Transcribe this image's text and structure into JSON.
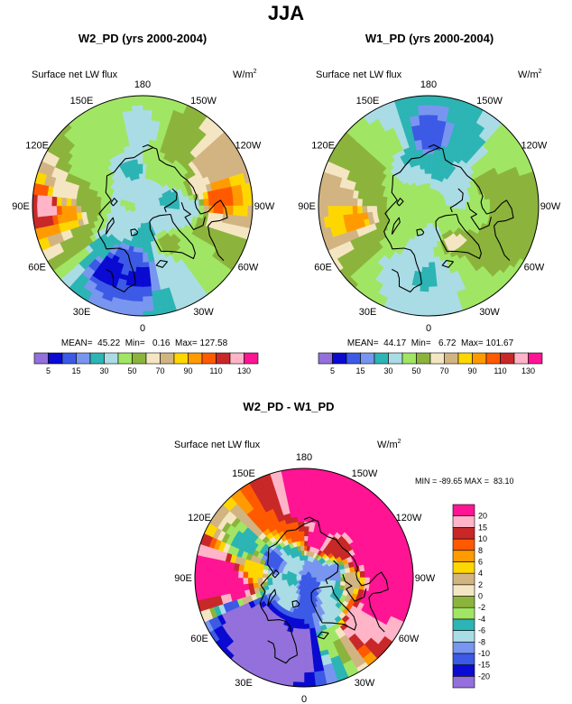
{
  "figure_title": "JJA",
  "palette_top": [
    "#9370db",
    "#0a0ad2",
    "#3c5ae6",
    "#7896f0",
    "#2db4b4",
    "#aadce6",
    "#a0e664",
    "#8cb43c",
    "#f5e6c3",
    "#d2b482",
    "#ffd700",
    "#ff9b00",
    "#ff5a00",
    "#c82828",
    "#ffb4c8",
    "#ff1493"
  ],
  "palette_diff": [
    "#9370db",
    "#0a0ad2",
    "#3c5ae6",
    "#7896f0",
    "#aadce6",
    "#2db4b4",
    "#a0e664",
    "#8cb43c",
    "#f5e6c3",
    "#d2b482",
    "#ffd700",
    "#ff9b00",
    "#ff5a00",
    "#c82828",
    "#ffb4c8",
    "#ff1493"
  ],
  "coastline_color": "#000000",
  "chart_data": [
    {
      "type": "heatmap",
      "projection": "polar-stereographic",
      "title": "W2_PD (yrs 2000-2004)",
      "variable": "Surface net LW flux",
      "units": "W/m",
      "units_exp": "2",
      "lon_labels": [
        "180",
        "150E",
        "120E",
        "90E",
        "60E",
        "30E",
        "0",
        "30W",
        "60W",
        "90W",
        "120W",
        "150W"
      ],
      "stats": {
        "mean": "45.22",
        "min": "0.16",
        "max": "127.58"
      },
      "stats_text": "MEAN=  45.22  Min=   0.16  Max= 127.58",
      "colorbar": {
        "levels": [
          5,
          10,
          15,
          20,
          30,
          40,
          50,
          60,
          70,
          80,
          90,
          100,
          110,
          120,
          130
        ],
        "tick_labels": [
          "5",
          "15",
          "30",
          "50",
          "70",
          "90",
          "110",
          "130"
        ]
      },
      "regions": [
        {
          "lon": 90,
          "lat": 52,
          "value": 125
        },
        {
          "lon": 85,
          "lat": 60,
          "value": 95
        },
        {
          "lon": 95,
          "lat": 67,
          "value": 55
        },
        {
          "lon": 100,
          "lat": 57,
          "value": 65
        },
        {
          "lon": 120,
          "lat": 62,
          "value": 48
        },
        {
          "lon": 150,
          "lat": 60,
          "value": 45
        },
        {
          "lon": 180,
          "lat": 60,
          "value": 38
        },
        {
          "lon": 165,
          "lat": 75,
          "value": 28
        },
        {
          "lon": 140,
          "lat": 78,
          "value": 32
        },
        {
          "lon": 120,
          "lat": 72,
          "value": 45
        },
        {
          "lon": 60,
          "lat": 62,
          "value": 55
        },
        {
          "lon": 45,
          "lat": 65,
          "value": 25
        },
        {
          "lon": 30,
          "lat": 62,
          "value": 5
        },
        {
          "lon": 15,
          "lat": 68,
          "value": 12
        },
        {
          "lon": 0,
          "lat": 62,
          "value": 8
        },
        {
          "lon": 0,
          "lat": 78,
          "value": 22
        },
        {
          "lon": 30,
          "lat": 80,
          "value": 38
        },
        {
          "lon": 60,
          "lat": 82,
          "value": 36
        },
        {
          "lon": 90,
          "lat": 85,
          "value": 42
        },
        {
          "lon": 135,
          "lat": 86,
          "value": 35
        },
        {
          "lon": -20,
          "lat": 62,
          "value": 35
        },
        {
          "lon": -35,
          "lat": 72,
          "value": 52
        },
        {
          "lon": -50,
          "lat": 62,
          "value": 48
        },
        {
          "lon": -60,
          "lat": 78,
          "value": 35
        },
        {
          "lon": -75,
          "lat": 62,
          "value": 60
        },
        {
          "lon": -85,
          "lat": 70,
          "value": 35
        },
        {
          "lon": -95,
          "lat": 60,
          "value": 110
        },
        {
          "lon": -100,
          "lat": 78,
          "value": 28
        },
        {
          "lon": -110,
          "lat": 66,
          "value": 62
        },
        {
          "lon": -120,
          "lat": 58,
          "value": 78
        },
        {
          "lon": -130,
          "lat": 72,
          "value": 48
        },
        {
          "lon": -150,
          "lat": 62,
          "value": 55
        },
        {
          "lon": -160,
          "lat": 74,
          "value": 48
        },
        {
          "lon": -140,
          "lat": 85,
          "value": 30
        },
        {
          "lon": -20,
          "lat": 86,
          "value": 30
        },
        {
          "lon": 0,
          "lat": 90,
          "value": 32
        }
      ]
    },
    {
      "type": "heatmap",
      "projection": "polar-stereographic",
      "title": "W1_PD (yrs 2000-2004)",
      "variable": "Surface net LW flux",
      "units": "W/m",
      "units_exp": "2",
      "lon_labels": [
        "180",
        "150E",
        "120E",
        "90E",
        "60E",
        "30E",
        "0",
        "30W",
        "60W",
        "90W",
        "120W",
        "150W"
      ],
      "stats": {
        "mean": "44.17",
        "min": "6.72",
        "max": "101.67"
      },
      "stats_text": "MEAN=  44.17  Min=   6.72  Max= 101.67",
      "colorbar": {
        "levels": [
          5,
          10,
          15,
          20,
          30,
          40,
          50,
          60,
          70,
          80,
          90,
          100,
          110,
          120,
          130
        ],
        "tick_labels": [
          "5",
          "15",
          "30",
          "50",
          "70",
          "90",
          "110",
          "130"
        ]
      },
      "regions": [
        {
          "lon": 90,
          "lat": 55,
          "value": 80
        },
        {
          "lon": 80,
          "lat": 60,
          "value": 95
        },
        {
          "lon": 100,
          "lat": 65,
          "value": 55
        },
        {
          "lon": 120,
          "lat": 62,
          "value": 55
        },
        {
          "lon": 150,
          "lat": 62,
          "value": 42
        },
        {
          "lon": 180,
          "lat": 62,
          "value": 10
        },
        {
          "lon": 165,
          "lat": 68,
          "value": 20
        },
        {
          "lon": 150,
          "lat": 75,
          "value": 35
        },
        {
          "lon": 120,
          "lat": 78,
          "value": 45
        },
        {
          "lon": 60,
          "lat": 62,
          "value": 55
        },
        {
          "lon": 45,
          "lat": 70,
          "value": 48
        },
        {
          "lon": 30,
          "lat": 62,
          "value": 38
        },
        {
          "lon": 15,
          "lat": 70,
          "value": 35
        },
        {
          "lon": 0,
          "lat": 62,
          "value": 28
        },
        {
          "lon": 0,
          "lat": 78,
          "value": 35
        },
        {
          "lon": 30,
          "lat": 80,
          "value": 42
        },
        {
          "lon": 60,
          "lat": 82,
          "value": 42
        },
        {
          "lon": 90,
          "lat": 85,
          "value": 46
        },
        {
          "lon": 135,
          "lat": 86,
          "value": 45
        },
        {
          "lon": -20,
          "lat": 62,
          "value": 40
        },
        {
          "lon": -35,
          "lat": 72,
          "value": 62
        },
        {
          "lon": -50,
          "lat": 62,
          "value": 52
        },
        {
          "lon": -60,
          "lat": 78,
          "value": 45
        },
        {
          "lon": -75,
          "lat": 62,
          "value": 52
        },
        {
          "lon": -85,
          "lat": 70,
          "value": 42
        },
        {
          "lon": -95,
          "lat": 60,
          "value": 55
        },
        {
          "lon": -100,
          "lat": 78,
          "value": 38
        },
        {
          "lon": -110,
          "lat": 66,
          "value": 52
        },
        {
          "lon": -120,
          "lat": 58,
          "value": 50
        },
        {
          "lon": -130,
          "lat": 72,
          "value": 38
        },
        {
          "lon": -150,
          "lat": 62,
          "value": 25
        },
        {
          "lon": -160,
          "lat": 74,
          "value": 25
        },
        {
          "lon": -140,
          "lat": 85,
          "value": 40
        },
        {
          "lon": -20,
          "lat": 86,
          "value": 42
        },
        {
          "lon": 0,
          "lat": 90,
          "value": 44
        }
      ]
    },
    {
      "type": "heatmap",
      "projection": "polar-stereographic",
      "title": "W2_PD - W1_PD",
      "variable": "Surface net LW flux",
      "units": "W/m",
      "units_exp": "2",
      "lon_labels": [
        "180",
        "150E",
        "120E",
        "90E",
        "60E",
        "30E",
        "0",
        "30W",
        "60W",
        "90W",
        "120W",
        "150W"
      ],
      "stats": {
        "min": "-89.65",
        "max": "83.10"
      },
      "stats_text": "MIN = -89.65 MAX =  83.10",
      "colorbar": {
        "levels": [
          -20,
          -15,
          -10,
          -8,
          -6,
          -4,
          -2,
          0,
          2,
          4,
          6,
          8,
          10,
          15,
          20
        ],
        "tick_labels": [
          "-20",
          "-15",
          "-10",
          "-8",
          "-6",
          "-4",
          "-2",
          "0",
          "2",
          "4",
          "6",
          "8",
          "10",
          "15",
          "20"
        ]
      },
      "regions": [
        {
          "lon": 90,
          "lat": 55,
          "value": 30
        },
        {
          "lon": 80,
          "lat": 62,
          "value": 25
        },
        {
          "lon": 100,
          "lat": 70,
          "value": 5
        },
        {
          "lon": 120,
          "lat": 62,
          "value": -5
        },
        {
          "lon": 150,
          "lat": 62,
          "value": 10
        },
        {
          "lon": 180,
          "lat": 60,
          "value": 28
        },
        {
          "lon": 165,
          "lat": 72,
          "value": 9
        },
        {
          "lon": 150,
          "lat": 78,
          "value": -6
        },
        {
          "lon": 120,
          "lat": 76,
          "value": -12
        },
        {
          "lon": 60,
          "lat": 60,
          "value": -25
        },
        {
          "lon": 45,
          "lat": 66,
          "value": -25
        },
        {
          "lon": 30,
          "lat": 62,
          "value": -30
        },
        {
          "lon": 15,
          "lat": 68,
          "value": -20
        },
        {
          "lon": 0,
          "lat": 62,
          "value": -28
        },
        {
          "lon": 0,
          "lat": 80,
          "value": -12
        },
        {
          "lon": 30,
          "lat": 80,
          "value": -6
        },
        {
          "lon": 60,
          "lat": 80,
          "value": -8
        },
        {
          "lon": 90,
          "lat": 86,
          "value": -4
        },
        {
          "lon": 135,
          "lat": 86,
          "value": -8
        },
        {
          "lon": -20,
          "lat": 62,
          "value": -2
        },
        {
          "lon": -35,
          "lat": 72,
          "value": -8
        },
        {
          "lon": -50,
          "lat": 62,
          "value": 20
        },
        {
          "lon": -60,
          "lat": 78,
          "value": -6
        },
        {
          "lon": -75,
          "lat": 60,
          "value": 25
        },
        {
          "lon": -85,
          "lat": 70,
          "value": 3
        },
        {
          "lon": -95,
          "lat": 58,
          "value": 35
        },
        {
          "lon": -100,
          "lat": 78,
          "value": -10
        },
        {
          "lon": -110,
          "lat": 65,
          "value": 22
        },
        {
          "lon": -120,
          "lat": 58,
          "value": 35
        },
        {
          "lon": -130,
          "lat": 72,
          "value": 12
        },
        {
          "lon": -150,
          "lat": 62,
          "value": 30
        },
        {
          "lon": -160,
          "lat": 74,
          "value": 22
        },
        {
          "lon": -140,
          "lat": 85,
          "value": -9
        },
        {
          "lon": -20,
          "lat": 86,
          "value": -12
        },
        {
          "lon": 0,
          "lat": 90,
          "value": -12
        }
      ]
    }
  ]
}
